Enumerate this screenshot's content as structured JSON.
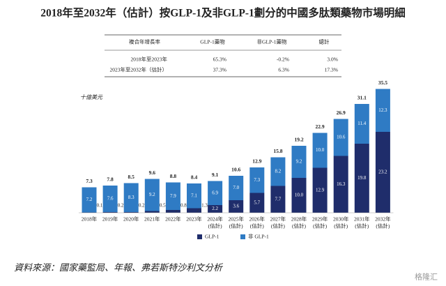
{
  "chart_data": {
    "type": "stacked-bar",
    "title": "2018年至2032年（估計）按GLP-1及非GLP-1劃分的中國多肽類藥物市場明細",
    "table": {
      "header": [
        "複合年增長率",
        "GLP-1藥物",
        "非GLP-1藥物",
        "總計"
      ],
      "rows": [
        [
          "2018年至2023年",
          "65.3%",
          "-0.2%",
          "3.0%"
        ],
        [
          "2023年至2032年（估計）",
          "37.3%",
          "6.3%",
          "17.3%"
        ]
      ]
    },
    "unit_label": "十億美元",
    "categories": [
      [
        "2018年"
      ],
      [
        "2019年"
      ],
      [
        "2020年"
      ],
      [
        "2021年"
      ],
      [
        "2022年"
      ],
      [
        "2023年"
      ],
      [
        "2024年",
        "(估計)"
      ],
      [
        "2025年",
        "(估計)"
      ],
      [
        "2026年",
        "(估計)"
      ],
      [
        "2027年",
        "(估計)"
      ],
      [
        "2028年",
        "(估計)"
      ],
      [
        "2029年",
        "(估計)"
      ],
      [
        "2030年",
        "(估計)"
      ],
      [
        "2031年",
        "(估計)"
      ],
      [
        "2032年",
        "(估計)"
      ]
    ],
    "series": [
      {
        "name": "GLP-1",
        "color": "#1f2d6b",
        "values": [
          0.1,
          0.2,
          0.2,
          0.5,
          0.8,
          1.3,
          2.2,
          3.6,
          5.7,
          7.7,
          10.0,
          12.9,
          16.3,
          19.8,
          23.2
        ],
        "value_labels": [
          "0.1",
          "0.2",
          "0.2",
          "0.5",
          "0.8",
          "1.3",
          "2.2",
          "3.6",
          "5.7",
          "7.7",
          "10.0",
          "12.9",
          "16.3",
          "19.8",
          "23.2"
        ]
      },
      {
        "name": "非 GLP-1",
        "color": "#2f7bc4",
        "values": [
          7.2,
          7.6,
          8.3,
          9.2,
          7.9,
          7.1,
          6.9,
          7.0,
          7.3,
          8.2,
          9.2,
          10.0,
          10.6,
          11.4,
          12.3
        ],
        "value_labels": [
          "7.2",
          "7.6",
          "8.3",
          "9.2",
          "7.9",
          "7.1",
          "6.9",
          "7.0",
          "7.3",
          "8.2",
          "9.2",
          "10.0",
          "10.6",
          "11.4",
          "12.3"
        ]
      }
    ],
    "totals": [
      7.3,
      7.8,
      8.5,
      9.6,
      8.8,
      8.4,
      9.1,
      10.6,
      12.9,
      15.8,
      19.2,
      22.9,
      26.9,
      31.1,
      35.5
    ],
    "ylim": [
      0,
      36
    ],
    "source": "資料來源：國家藥監局、年報、弗若斯特沙利文分析",
    "watermark": "格隆汇"
  }
}
